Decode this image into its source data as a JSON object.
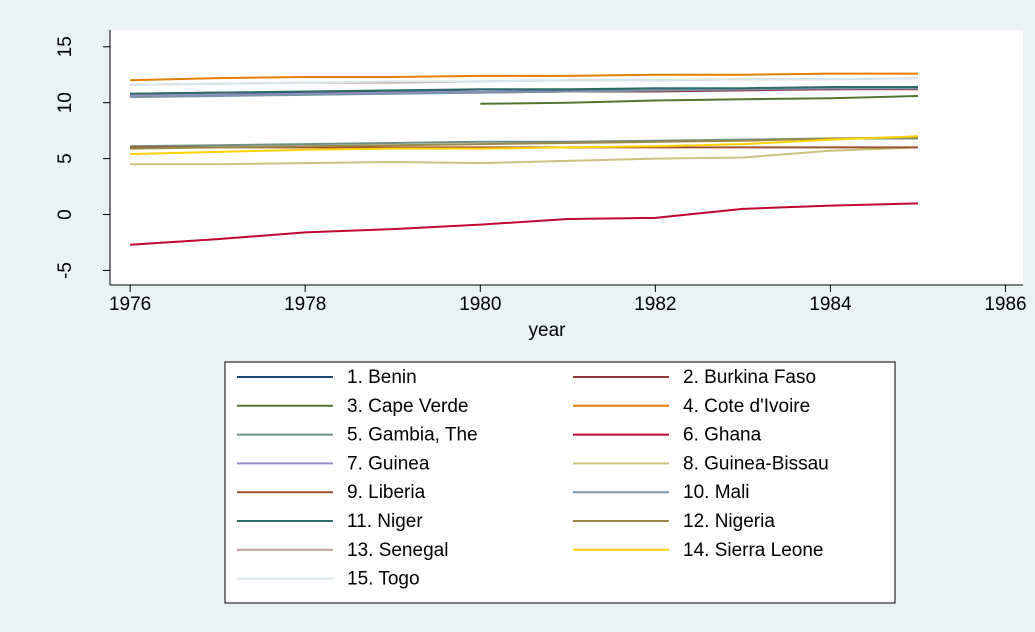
{
  "chart_data": {
    "type": "line",
    "x_label": "year",
    "x": [
      1976,
      1977,
      1978,
      1979,
      1980,
      1981,
      1982,
      1983,
      1984,
      1985
    ],
    "xlim": [
      1975.77,
      1986.2
    ],
    "xticks": [
      1976,
      1978,
      1980,
      1982,
      1984,
      1986
    ],
    "ylim": [
      -6.3,
      16.5
    ],
    "yticks": [
      -5,
      0,
      5,
      10,
      15
    ],
    "grid": false,
    "legend_position": "bottom",
    "legend_columns": 2,
    "series": [
      {
        "name": "1. Benin",
        "color": "#1a476f",
        "values": [
          10.8,
          10.9,
          10.9,
          11.0,
          11.0,
          11.1,
          11.1,
          11.2,
          11.2,
          11.3
        ]
      },
      {
        "name": "2. Burkina Faso",
        "color": "#90353b",
        "values": [
          10.6,
          10.7,
          10.8,
          10.9,
          10.9,
          11.0,
          11.0,
          11.1,
          11.2,
          11.2
        ]
      },
      {
        "name": "3. Cape Verde",
        "color": "#55752f",
        "values": [
          null,
          null,
          null,
          null,
          9.9,
          10.0,
          10.2,
          10.3,
          10.4,
          10.6
        ]
      },
      {
        "name": "4. Cote d'Ivoire",
        "color": "#e37e00",
        "values": [
          12.0,
          12.2,
          12.3,
          12.3,
          12.4,
          12.4,
          12.5,
          12.5,
          12.6,
          12.6
        ]
      },
      {
        "name": "5. Gambia, The",
        "color": "#6e8e84",
        "values": [
          6.1,
          6.2,
          6.3,
          6.4,
          6.5,
          6.5,
          6.6,
          6.7,
          6.8,
          6.8
        ]
      },
      {
        "name": "6. Ghana",
        "color": "#c10534",
        "values": [
          -2.7,
          -2.2,
          -1.6,
          -1.3,
          -0.9,
          -0.4,
          -0.3,
          0.5,
          0.8,
          1.0
        ]
      },
      {
        "name": "7. Guinea",
        "color": "#938dd2",
        "values": [
          10.6,
          10.7,
          10.8,
          10.9,
          11.0,
          11.0,
          11.1,
          11.2,
          11.3,
          11.3
        ]
      },
      {
        "name": "8. Guinea-Bissau",
        "color": "#cac27e",
        "values": [
          4.5,
          4.5,
          4.6,
          4.7,
          4.6,
          4.8,
          5.0,
          5.1,
          5.7,
          6.0
        ]
      },
      {
        "name": "9. Liberia",
        "color": "#a0522d",
        "values": [
          6.0,
          6.0,
          6.0,
          6.0,
          6.0,
          6.0,
          6.0,
          6.0,
          6.0,
          6.0
        ]
      },
      {
        "name": "10. Mali",
        "color": "#7b92a8",
        "values": [
          10.5,
          10.6,
          10.7,
          10.8,
          10.9,
          11.0,
          11.1,
          11.2,
          11.3,
          11.3
        ]
      },
      {
        "name": "11. Niger",
        "color": "#2d6d66",
        "values": [
          10.8,
          10.9,
          11.0,
          11.1,
          11.2,
          11.2,
          11.3,
          11.3,
          11.4,
          11.4
        ]
      },
      {
        "name": "12. Nigeria",
        "color": "#9c8847",
        "values": [
          5.9,
          6.0,
          6.1,
          6.2,
          6.3,
          6.4,
          6.5,
          6.6,
          6.8,
          6.9
        ]
      },
      {
        "name": "13. Senegal",
        "color": "#bfa19c",
        "values": [
          11.6,
          11.7,
          11.8,
          11.8,
          11.9,
          12.0,
          12.0,
          12.1,
          12.1,
          12.2
        ]
      },
      {
        "name": "14. Sierra Leone",
        "color": "#ffd200",
        "values": [
          5.4,
          5.6,
          5.8,
          5.9,
          5.9,
          6.0,
          6.1,
          6.3,
          6.7,
          7.0
        ]
      },
      {
        "name": "15. Togo",
        "color": "#d9e6eb",
        "values": [
          11.6,
          11.7,
          11.8,
          11.9,
          11.9,
          12.0,
          12.0,
          12.1,
          12.1,
          12.2
        ]
      }
    ]
  }
}
